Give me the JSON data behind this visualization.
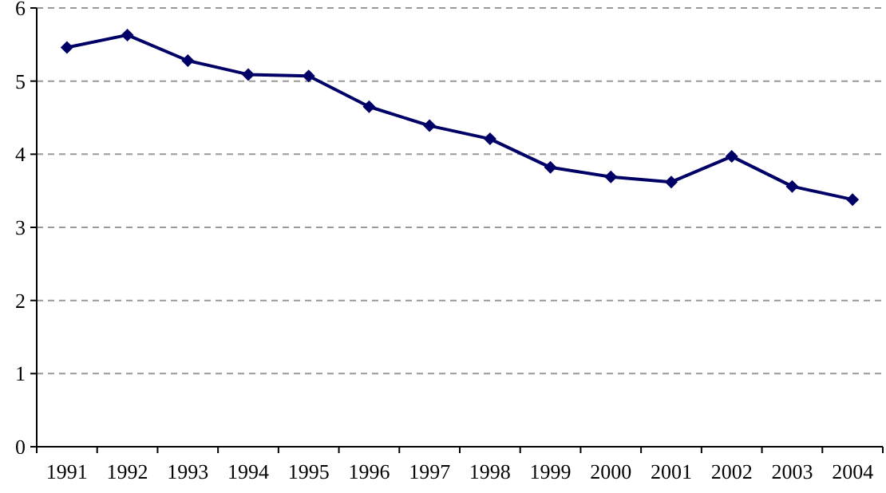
{
  "chart_data": {
    "type": "line",
    "categories": [
      "1991",
      "1992",
      "1993",
      "1994",
      "1995",
      "1996",
      "1997",
      "1998",
      "1999",
      "2000",
      "2001",
      "2002",
      "2003",
      "2004"
    ],
    "series": [
      {
        "color": "#000066",
        "values": [
          5.46,
          5.63,
          5.28,
          5.09,
          5.07,
          4.65,
          4.39,
          4.21,
          3.82,
          3.69,
          3.62,
          3.97,
          3.56,
          3.38
        ]
      }
    ],
    "ylim": [
      0,
      6
    ],
    "yticks": [
      0,
      1,
      2,
      3,
      4,
      5,
      6
    ],
    "grid": "y",
    "marker": "diamond",
    "line_style": "solid"
  }
}
